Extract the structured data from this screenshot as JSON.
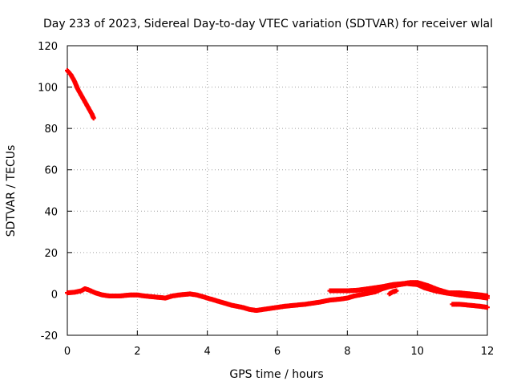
{
  "chart_data": {
    "type": "scatter",
    "title": "Day 233 of 2023, Sidereal Day-to-day VTEC variation (SDTVAR) for receiver wlal",
    "xlabel": "GPS time / hours",
    "ylabel": "SDTVAR / TECUs",
    "xlim": [
      0,
      12
    ],
    "ylim": [
      -20,
      120
    ],
    "x_ticks": [
      "0",
      "2",
      "4",
      "6",
      "8",
      "10",
      "12"
    ],
    "y_ticks": [
      "-20",
      "0",
      "20",
      "40",
      "60",
      "80",
      "100",
      "120"
    ],
    "grid": true,
    "marker_color": "#ff0000",
    "series": [
      {
        "x": [
          0.0,
          0.1,
          0.2,
          0.3,
          0.4,
          0.5,
          0.6,
          0.7,
          0.75
        ],
        "y": [
          108,
          106,
          103,
          99,
          96,
          93,
          90,
          87,
          85
        ]
      },
      {
        "x": [
          0.0,
          0.2,
          0.4,
          0.5,
          0.6,
          0.8,
          1.0,
          1.2,
          1.5,
          1.8,
          2.0,
          2.2,
          2.5,
          2.8,
          3.0,
          3.2,
          3.5,
          3.7,
          4.0,
          4.2,
          4.5,
          4.7,
          5.0,
          5.2,
          5.4,
          5.6,
          5.8,
          6.0,
          6.2,
          6.5,
          6.8,
          7.0,
          7.2,
          7.5,
          7.8,
          8.0,
          8.2,
          8.5,
          8.8,
          9.0,
          9.2,
          9.5,
          9.7,
          10.0,
          10.2,
          10.5,
          10.8,
          11.0,
          11.2,
          11.5,
          11.8,
          12.0
        ],
        "y": [
          0.5,
          0.8,
          1.5,
          2.5,
          2.0,
          0.5,
          -0.5,
          -1.0,
          -1.0,
          -0.5,
          -0.5,
          -1.0,
          -1.5,
          -2.0,
          -1.0,
          -0.5,
          0.0,
          -0.5,
          -2.0,
          -3.0,
          -4.5,
          -5.5,
          -6.5,
          -7.5,
          -8.0,
          -7.5,
          -7.0,
          -6.5,
          -6.0,
          -5.5,
          -5.0,
          -4.5,
          -4.0,
          -3.0,
          -2.5,
          -2.0,
          -1.0,
          0.0,
          1.0,
          2.5,
          3.5,
          4.5,
          5.0,
          4.5,
          3.0,
          1.5,
          0.5,
          0.0,
          -0.5,
          -1.0,
          -1.5,
          -2.0
        ]
      },
      {
        "x": [
          7.5,
          7.8,
          8.0,
          8.3,
          8.6,
          9.0,
          9.3,
          9.6,
          9.8,
          10.0,
          10.3,
          10.6,
          10.9,
          11.2,
          11.5,
          11.8,
          12.0
        ],
        "y": [
          1.5,
          1.5,
          1.5,
          1.8,
          2.5,
          3.5,
          4.5,
          5.0,
          5.5,
          5.5,
          4.0,
          2.0,
          0.5,
          0.5,
          0.0,
          -0.5,
          -1.0
        ]
      },
      {
        "x": [
          11.0,
          11.2,
          11.5,
          11.8,
          12.0
        ],
        "y": [
          -5.0,
          -5.0,
          -5.5,
          -6.0,
          -6.5
        ]
      },
      {
        "x": [
          9.2,
          9.3,
          9.4
        ],
        "y": [
          0.0,
          1.0,
          1.5
        ]
      }
    ]
  }
}
